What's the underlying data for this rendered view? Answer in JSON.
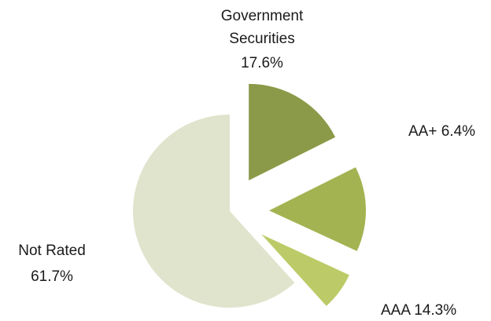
{
  "chart_data": {
    "type": "pie",
    "title": "",
    "legend": "none",
    "slices": [
      {
        "label": "Government Securities",
        "label_lines": [
          "Government",
          "Securities",
          "17.6%"
        ],
        "value": 17.6,
        "color": "#8b9a48"
      },
      {
        "label": "AAA",
        "label_lines": [
          "AAA 14.3%"
        ],
        "value": 14.3,
        "color": "#a3b351"
      },
      {
        "label": "AA+",
        "label_lines": [
          "AA+ 6.4%"
        ],
        "value": 6.4,
        "color": "#bccb68"
      },
      {
        "label": "Not Rated",
        "label_lines": [
          "Not Rated",
          "61.7%"
        ],
        "value": 61.7,
        "color": "#e0e4cd"
      }
    ]
  }
}
